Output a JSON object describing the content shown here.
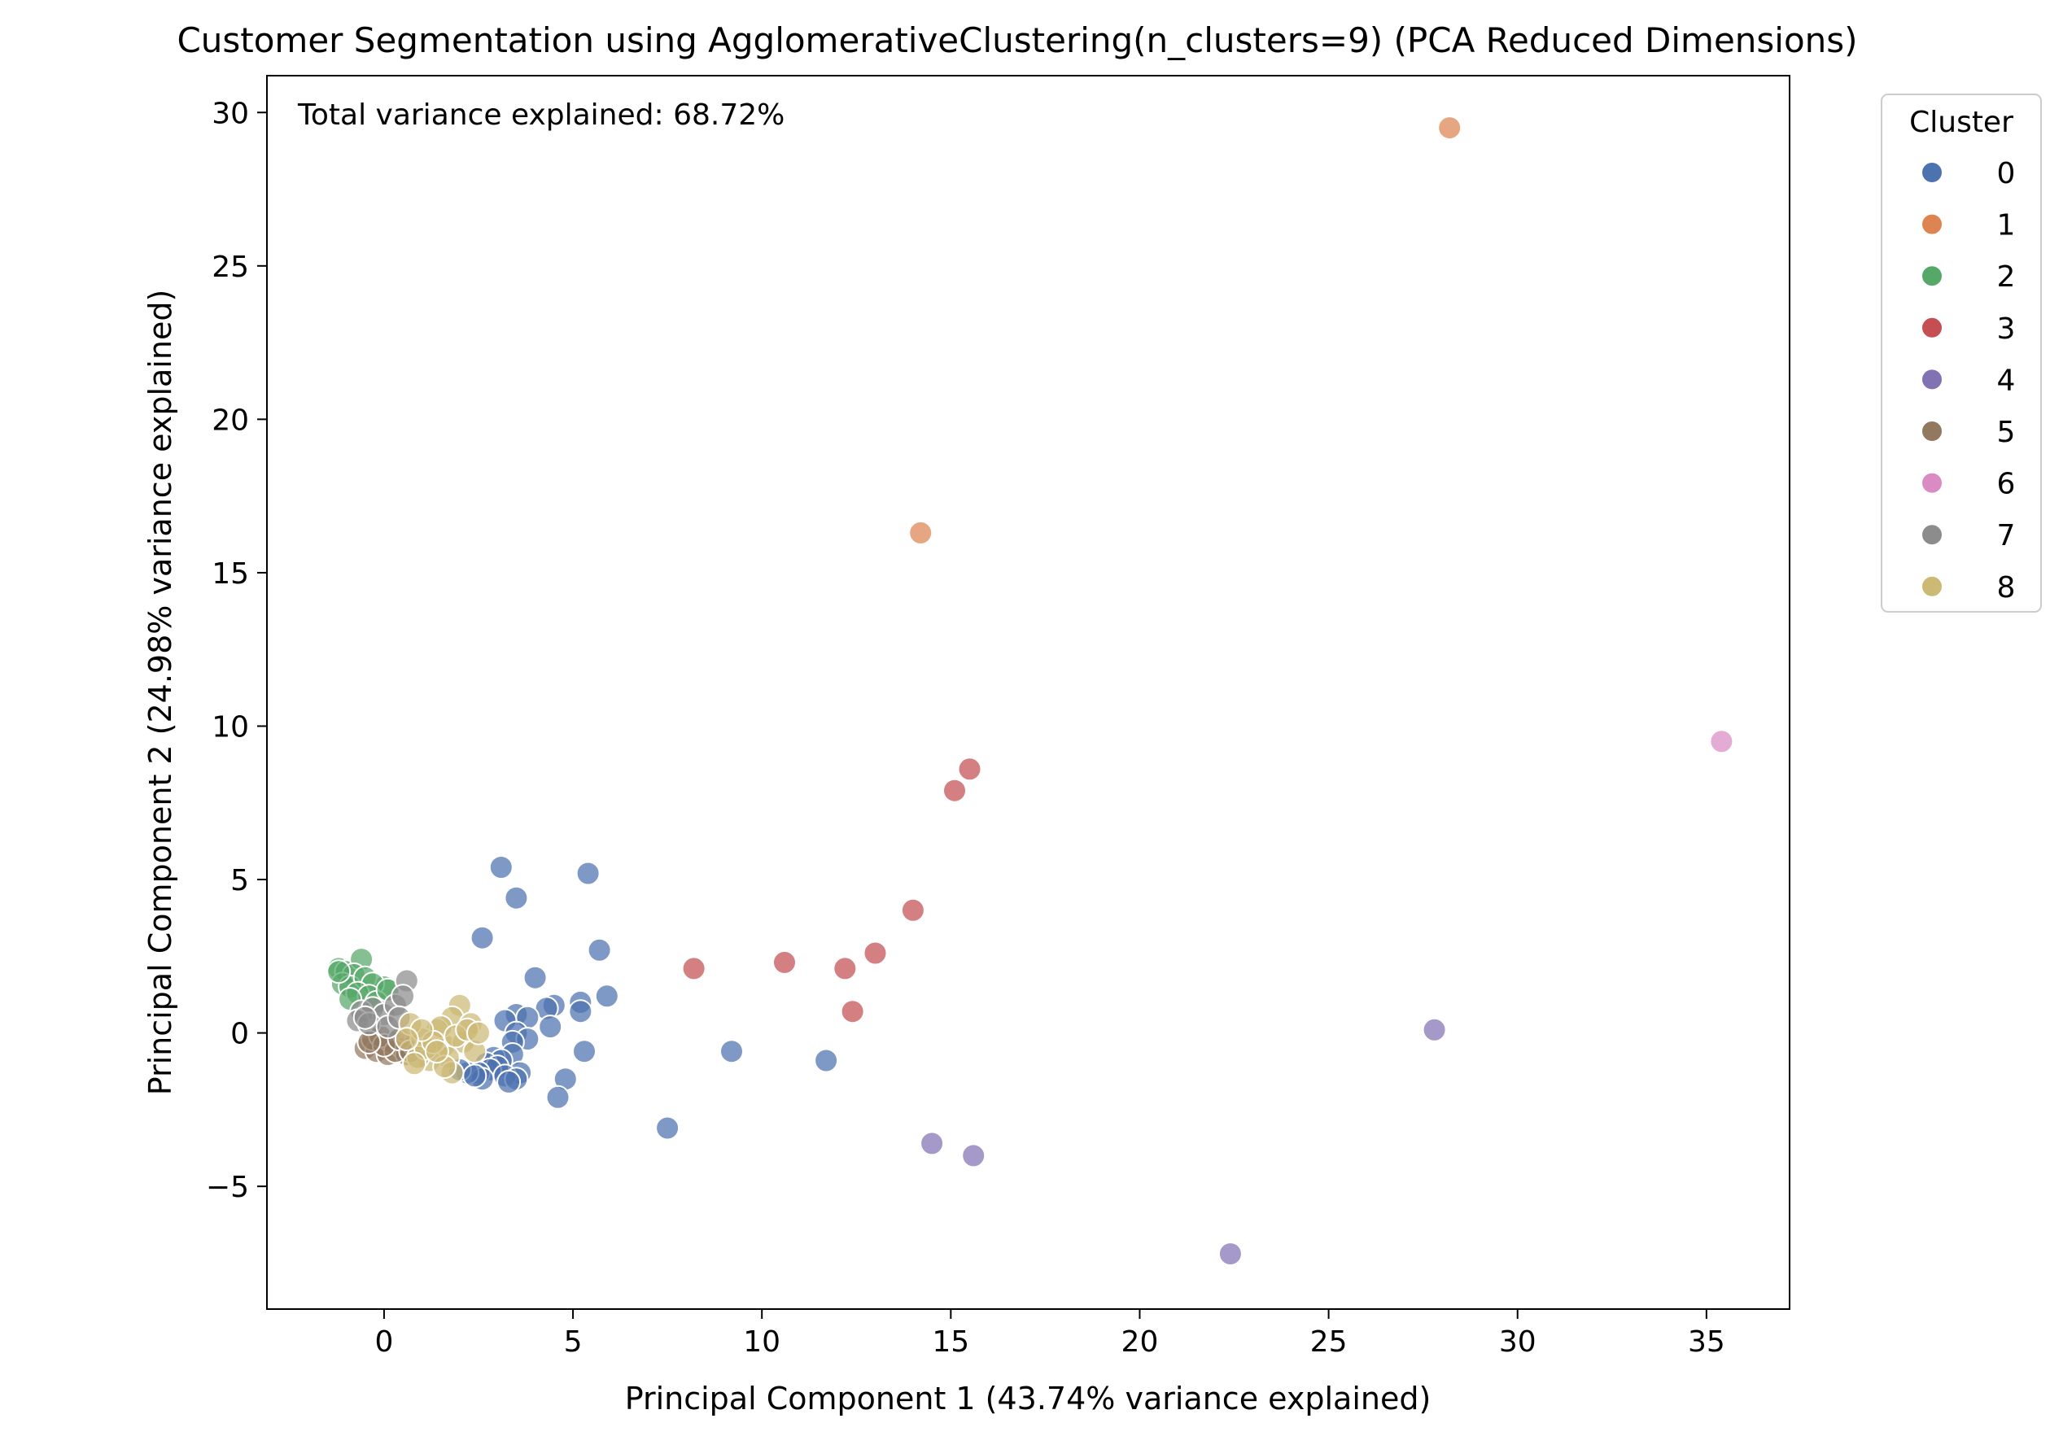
{
  "chart_data": {
    "type": "scatter",
    "title": "Customer Segmentation using AgglomerativeClustering(n_clusters=9) (PCA Reduced Dimensions)",
    "xlabel": "Principal Component 1 (43.74% variance explained)",
    "ylabel": "Principal Component 2 (24.98% variance explained)",
    "annotation": "Total variance explained: 68.72%",
    "xlim": [
      -3.1,
      37.2
    ],
    "ylim": [
      -9.0,
      31.2
    ],
    "xticks": [
      0,
      5,
      10,
      15,
      20,
      25,
      30,
      35
    ],
    "yticks": [
      -5,
      0,
      5,
      10,
      15,
      20,
      25,
      30
    ],
    "xtick_labels": [
      "0",
      "5",
      "10",
      "15",
      "20",
      "25",
      "30",
      "35"
    ],
    "ytick_labels": [
      "−5",
      "0",
      "5",
      "10",
      "15",
      "20",
      "25",
      "30"
    ],
    "grid": false,
    "legend": {
      "title": "Cluster",
      "placement": "outside-right-top"
    },
    "series": [
      {
        "name": "0",
        "color": "#4c72b0",
        "points": [
          [
            3.1,
            5.4
          ],
          [
            5.4,
            5.2
          ],
          [
            3.5,
            4.4
          ],
          [
            2.6,
            3.1
          ],
          [
            5.7,
            2.7
          ],
          [
            4.0,
            1.8
          ],
          [
            5.9,
            1.2
          ],
          [
            5.2,
            1.0
          ],
          [
            4.5,
            0.9
          ],
          [
            4.3,
            0.8
          ],
          [
            5.2,
            0.7
          ],
          [
            3.5,
            0.6
          ],
          [
            3.8,
            0.5
          ],
          [
            3.2,
            0.4
          ],
          [
            4.4,
            0.2
          ],
          [
            3.5,
            0.0
          ],
          [
            3.8,
            -0.2
          ],
          [
            3.4,
            -0.3
          ],
          [
            5.3,
            -0.6
          ],
          [
            9.2,
            -0.6
          ],
          [
            11.7,
            -0.9
          ],
          [
            3.4,
            -0.7
          ],
          [
            2.9,
            -0.8
          ],
          [
            3.1,
            -0.9
          ],
          [
            2.7,
            -1.0
          ],
          [
            3.0,
            -1.1
          ],
          [
            2.8,
            -1.2
          ],
          [
            3.6,
            -1.3
          ],
          [
            2.5,
            -1.3
          ],
          [
            3.2,
            -1.4
          ],
          [
            3.5,
            -1.5
          ],
          [
            2.6,
            -1.5
          ],
          [
            3.3,
            -1.6
          ],
          [
            4.8,
            -1.5
          ],
          [
            4.6,
            -2.1
          ],
          [
            7.5,
            -3.1
          ],
          [
            2.2,
            -1.3
          ],
          [
            2.0,
            -1.2
          ],
          [
            2.4,
            -1.4
          ]
        ]
      },
      {
        "name": "1",
        "color": "#dd8452",
        "points": [
          [
            28.2,
            29.5
          ],
          [
            14.2,
            16.3
          ]
        ]
      },
      {
        "name": "2",
        "color": "#55a868",
        "points": [
          [
            -1.2,
            2.1
          ],
          [
            -1.0,
            2.0
          ],
          [
            -0.6,
            2.4
          ],
          [
            -0.8,
            1.9
          ],
          [
            -1.1,
            1.6
          ],
          [
            -0.9,
            1.5
          ],
          [
            0.0,
            1.5
          ],
          [
            -0.5,
            1.8
          ],
          [
            -0.3,
            1.6
          ],
          [
            -1.2,
            2.0
          ],
          [
            -0.7,
            1.3
          ],
          [
            -0.4,
            1.2
          ],
          [
            -0.9,
            1.1
          ],
          [
            -0.2,
            1.0
          ],
          [
            0.1,
            1.4
          ]
        ]
      },
      {
        "name": "3",
        "color": "#c44e52",
        "points": [
          [
            15.5,
            8.6
          ],
          [
            15.1,
            7.9
          ],
          [
            14.0,
            4.0
          ],
          [
            13.0,
            2.6
          ],
          [
            10.6,
            2.3
          ],
          [
            8.2,
            2.1
          ],
          [
            12.2,
            2.1
          ],
          [
            12.4,
            0.7
          ]
        ]
      },
      {
        "name": "4",
        "color": "#8172b3",
        "points": [
          [
            27.8,
            0.1
          ],
          [
            14.5,
            -3.6
          ],
          [
            15.6,
            -4.0
          ],
          [
            22.4,
            -7.2
          ]
        ]
      },
      {
        "name": "5",
        "color": "#937860",
        "points": [
          [
            -0.5,
            -0.5
          ],
          [
            -0.2,
            -0.6
          ],
          [
            -0.3,
            -0.2
          ],
          [
            0.1,
            -0.7
          ],
          [
            0.2,
            -0.3
          ],
          [
            0.5,
            -0.5
          ],
          [
            0.6,
            -0.7
          ],
          [
            -0.1,
            -0.1
          ],
          [
            0.3,
            -0.6
          ],
          [
            0.0,
            -0.4
          ],
          [
            0.8,
            -0.4
          ],
          [
            0.4,
            -0.2
          ],
          [
            -0.4,
            -0.3
          ],
          [
            0.7,
            -0.6
          ]
        ]
      },
      {
        "name": "6",
        "color": "#da8bc3",
        "points": [
          [
            35.4,
            9.5
          ]
        ]
      },
      {
        "name": "7",
        "color": "#8c8c8c",
        "points": [
          [
            0.6,
            1.7
          ],
          [
            -0.6,
            0.7
          ],
          [
            -0.3,
            0.8
          ],
          [
            0.0,
            0.6
          ],
          [
            0.3,
            0.9
          ],
          [
            0.5,
            1.2
          ],
          [
            -0.7,
            0.4
          ],
          [
            -0.4,
            0.3
          ],
          [
            0.1,
            0.2
          ],
          [
            -0.5,
            0.5
          ],
          [
            0.4,
            0.5
          ]
        ]
      },
      {
        "name": "8",
        "color": "#ccb974",
        "points": [
          [
            2.0,
            0.9
          ],
          [
            1.8,
            0.5
          ],
          [
            2.3,
            0.3
          ],
          [
            1.4,
            0.1
          ],
          [
            1.0,
            -0.2
          ],
          [
            1.6,
            -0.4
          ],
          [
            2.1,
            -0.3
          ],
          [
            1.7,
            -0.8
          ],
          [
            1.2,
            -0.9
          ],
          [
            0.9,
            -0.8
          ],
          [
            1.8,
            -1.3
          ],
          [
            1.1,
            -0.5
          ],
          [
            0.7,
            0.3
          ],
          [
            1.5,
            0.2
          ],
          [
            1.9,
            -0.1
          ],
          [
            2.4,
            -0.6
          ],
          [
            0.8,
            -1.0
          ],
          [
            1.3,
            -0.3
          ],
          [
            2.2,
            0.1
          ],
          [
            1.6,
            -1.1
          ],
          [
            1.0,
            0.1
          ],
          [
            2.5,
            0.0
          ],
          [
            0.6,
            -0.2
          ],
          [
            1.4,
            -0.6
          ]
        ]
      }
    ]
  }
}
